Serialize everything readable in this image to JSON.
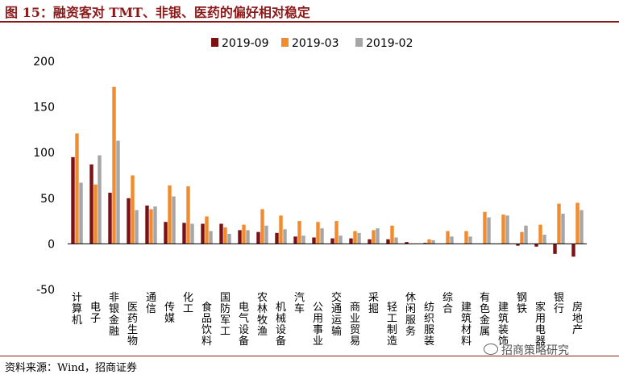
{
  "header": {
    "title": "图 15：融资客对 TMT、非银、医药的偏好相对稳定"
  },
  "footer": {
    "source": "资料来源：Wind，招商证券",
    "watermark": "招商策略研究"
  },
  "chart_data": {
    "type": "bar",
    "title": "",
    "xlabel": "",
    "ylabel": "",
    "ylim": [
      -50,
      200
    ],
    "yticks": [
      -50,
      0,
      50,
      100,
      150,
      200
    ],
    "grid": false,
    "legend_position": "top",
    "categories": [
      "计算机",
      "电子",
      "非银金融",
      "医药生物",
      "通信",
      "传媒",
      "化工",
      "食品饮料",
      "国防军工",
      "电气设备",
      "农林牧渔",
      "机械设备",
      "汽车",
      "公用事业",
      "交通运输",
      "商业贸易",
      "采掘",
      "轻工制造",
      "休闲服务",
      "纺织服装",
      "综合",
      "建筑材料",
      "有色金属",
      "建筑装饰",
      "钢铁",
      "家用电器",
      "银行",
      "房地产"
    ],
    "series": [
      {
        "name": "2019-09",
        "color": "#7B1113",
        "values": [
          95,
          87,
          56,
          50,
          42,
          24,
          23,
          22,
          22,
          15,
          13,
          12,
          8,
          7,
          6,
          6,
          5,
          5,
          2,
          1,
          0,
          0,
          0,
          0,
          -2,
          -3,
          -11,
          -14
        ]
      },
      {
        "name": "2019-03",
        "color": "#F28A2E",
        "values": [
          121,
          65,
          172,
          75,
          38,
          64,
          63,
          30,
          18,
          21,
          38,
          31,
          25,
          24,
          25,
          14,
          15,
          20,
          0,
          5,
          14,
          14,
          35,
          32,
          13,
          21,
          44,
          45
        ]
      },
      {
        "name": "2019-02",
        "color": "#A6A6A6",
        "values": [
          67,
          97,
          113,
          37,
          41,
          52,
          22,
          14,
          11,
          15,
          20,
          16,
          9,
          17,
          9,
          12,
          17,
          7,
          0,
          4,
          8,
          8,
          29,
          31,
          20,
          10,
          33,
          37
        ]
      }
    ]
  }
}
